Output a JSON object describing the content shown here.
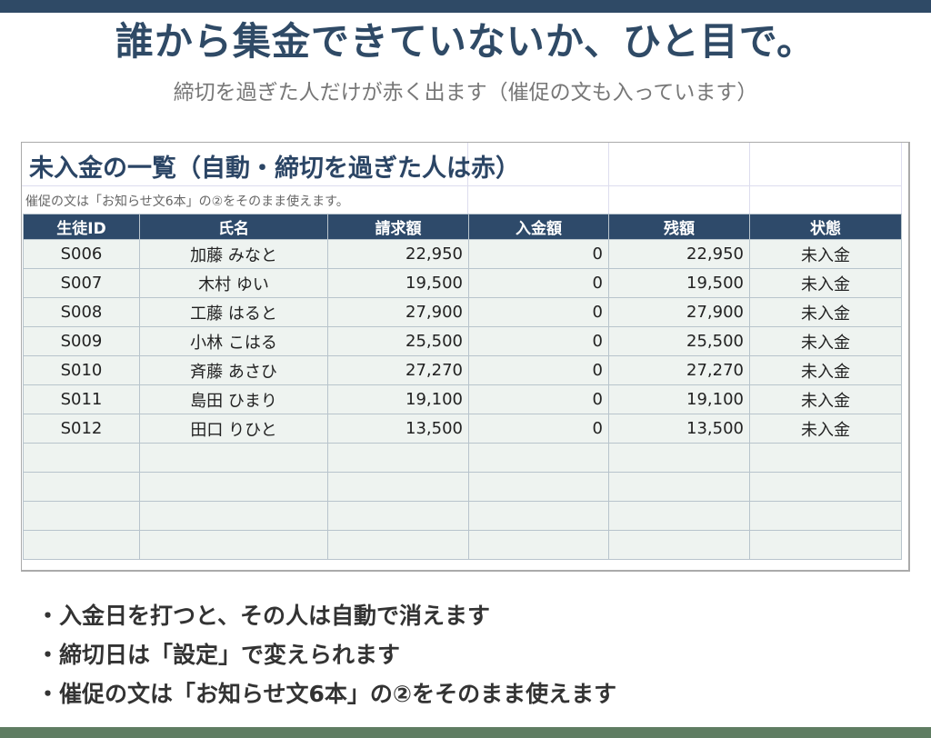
{
  "header": {
    "title": "誰から集金できていないか、ひと目で。",
    "subtitle": "締切を過ぎた人だけが赤く出ます（催促の文も入っています）"
  },
  "sheet": {
    "title": "未入金の一覧（自動・締切を過ぎた人は赤）",
    "note": "催促の文は「お知らせ文6本」の②をそのまま使えます。"
  },
  "table": {
    "columns": [
      "生徒ID",
      "氏名",
      "請求額",
      "入金額",
      "残額",
      "状態"
    ],
    "rows": [
      [
        "S006",
        "加藤 みなと",
        "22,950",
        "0",
        "22,950",
        "未入金"
      ],
      [
        "S007",
        "木村 ゆい",
        "19,500",
        "0",
        "19,500",
        "未入金"
      ],
      [
        "S008",
        "工藤 はると",
        "27,900",
        "0",
        "27,900",
        "未入金"
      ],
      [
        "S009",
        "小林 こはる",
        "25,500",
        "0",
        "25,500",
        "未入金"
      ],
      [
        "S010",
        "斉藤 あさひ",
        "27,270",
        "0",
        "27,270",
        "未入金"
      ],
      [
        "S011",
        "島田 ひまり",
        "19,100",
        "0",
        "19,100",
        "未入金"
      ],
      [
        "S012",
        "田口 りひと",
        "13,500",
        "0",
        "13,500",
        "未入金"
      ]
    ]
  },
  "bullets": [
    "・入金日を打つと、その人は自動で消えます",
    "・締切日は「設定」で変えられます",
    "・催促の文は「お知らせ文6本」の②をそのまま使えます"
  ]
}
